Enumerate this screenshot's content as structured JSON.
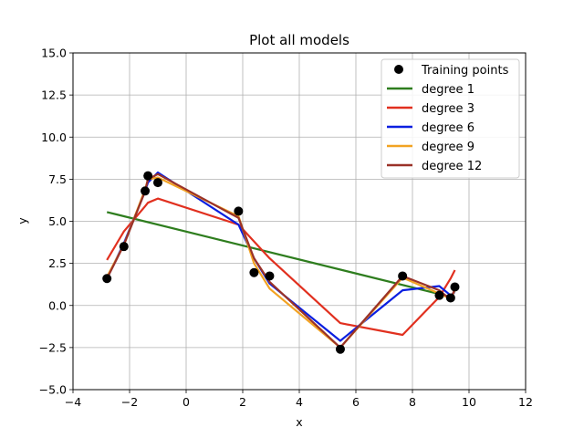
{
  "chart_data": {
    "type": "line",
    "title": "Plot all models",
    "xlabel": "x",
    "ylabel": "y",
    "xlim": [
      -4,
      12
    ],
    "ylim": [
      -5,
      15
    ],
    "xticks": [
      -4,
      -2,
      0,
      2,
      4,
      6,
      8,
      10,
      12
    ],
    "yticks": [
      -5.0,
      -2.5,
      0.0,
      2.5,
      5.0,
      7.5,
      10.0,
      12.5,
      15.0
    ],
    "xtick_labels": [
      "−4",
      "−2",
      "0",
      "2",
      "4",
      "6",
      "8",
      "10",
      "12"
    ],
    "ytick_labels": [
      "−5.0",
      "−2.5",
      "0.0",
      "2.5",
      "5.0",
      "7.5",
      "10.0",
      "12.5",
      "15.0"
    ],
    "grid": true,
    "legend_position": "top-right",
    "scatter": {
      "name": "Training points",
      "color": "#000000",
      "x": [
        -2.8,
        -2.2,
        -1.45,
        -1.35,
        -1.0,
        1.85,
        2.4,
        2.95,
        5.45,
        7.65,
        8.95,
        9.35,
        9.5
      ],
      "y": [
        1.6,
        3.5,
        6.8,
        7.7,
        7.3,
        5.6,
        1.95,
        1.75,
        -2.6,
        1.75,
        0.6,
        0.45,
        1.1
      ]
    },
    "series": [
      {
        "name": "degree 1",
        "color": "#2e7d1e",
        "x": [
          -2.8,
          9.5
        ],
        "y": [
          5.55,
          0.45
        ]
      },
      {
        "name": "degree 3",
        "color": "#e1301f",
        "x": [
          -2.8,
          -2.2,
          -1.45,
          -1.35,
          -1.0,
          1.85,
          2.4,
          2.95,
          5.45,
          7.65,
          8.95,
          9.35,
          9.5
        ],
        "y": [
          2.7,
          4.4,
          5.9,
          6.1,
          6.35,
          4.8,
          3.8,
          2.8,
          -1.05,
          -1.75,
          0.5,
          1.6,
          2.1
        ]
      },
      {
        "name": "degree 6",
        "color": "#0b1fe0",
        "x": [
          -2.8,
          -2.2,
          -1.45,
          -1.35,
          -1.0,
          1.85,
          2.4,
          2.95,
          5.45,
          7.65,
          8.95,
          9.35,
          9.5
        ],
        "y": [
          1.6,
          3.7,
          6.8,
          7.3,
          7.9,
          4.8,
          2.8,
          1.3,
          -2.1,
          0.9,
          1.15,
          0.6,
          0.8
        ]
      },
      {
        "name": "degree 9",
        "color": "#f2a323",
        "x": [
          -2.8,
          -2.2,
          -1.45,
          -1.35,
          -1.0,
          1.85,
          2.4,
          2.95,
          5.45,
          7.65,
          8.95,
          9.35,
          9.5
        ],
        "y": [
          1.7,
          3.6,
          6.9,
          7.5,
          7.6,
          5.3,
          2.5,
          1.0,
          -2.5,
          1.65,
          0.7,
          0.4,
          0.9
        ]
      },
      {
        "name": "degree 12",
        "color": "#9a3228",
        "x": [
          -2.8,
          -2.2,
          -1.45,
          -1.35,
          -1.0,
          1.85,
          2.4,
          2.95,
          5.45,
          7.65,
          8.95,
          9.35,
          9.5
        ],
        "y": [
          1.6,
          3.6,
          6.8,
          7.5,
          7.8,
          5.2,
          2.8,
          1.4,
          -2.5,
          1.75,
          0.9,
          0.35,
          1.0
        ]
      }
    ]
  }
}
